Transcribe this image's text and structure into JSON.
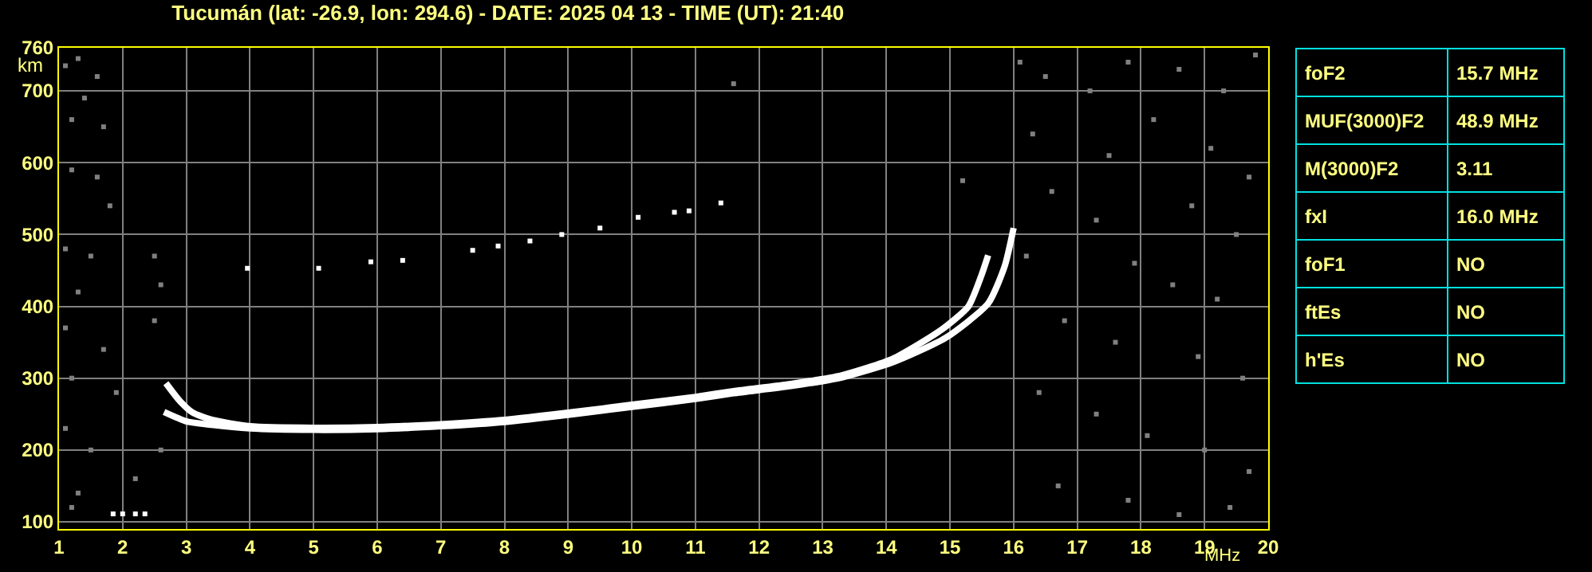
{
  "chart_data": [
    {
      "type": "line",
      "title": "Tucumán (lat: -26.9, lon: 294.6) - DATE: 2025 04 13 - TIME (UT): 21:40",
      "xlabel": "MHz",
      "ylabel": "km",
      "xlim": [
        1,
        20
      ],
      "xticks": [
        1,
        2,
        3,
        4,
        5,
        6,
        7,
        8,
        9,
        10,
        11,
        12,
        13,
        14,
        15,
        16,
        17,
        18,
        19,
        20
      ],
      "ylim": [
        90,
        760
      ],
      "yticks": [
        100,
        200,
        300,
        400,
        500,
        600,
        700,
        760
      ],
      "grid": true,
      "series": [
        {
          "marker": "none",
          "color": "#ffffff",
          "x": [
            2.68,
            2.9,
            3.1,
            3.4,
            4,
            5,
            6,
            7,
            8,
            9.1,
            10,
            11,
            11.6,
            12.5,
            13.3,
            14.1,
            14.86,
            15.29,
            15.49,
            15.6
          ],
          "values": [
            293,
            268,
            252,
            242,
            233,
            231,
            232,
            236,
            242,
            253,
            263,
            274,
            282,
            292,
            304,
            327,
            367,
            400,
            442,
            471
          ]
        },
        {
          "marker": "none",
          "color": "#ffffff",
          "x": [
            2.65,
            3,
            3.4,
            4,
            5,
            6,
            7,
            8,
            9.1,
            10,
            11,
            11.6,
            12.5,
            13.3,
            14.1,
            14.93,
            15.6,
            15.86,
            16.0
          ],
          "values": [
            253,
            240,
            235,
            230,
            228,
            229,
            233,
            239,
            250,
            260,
            271,
            279,
            289,
            301,
            322,
            356,
            404,
            456,
            509
          ]
        },
        {
          "type": "scatter",
          "marker": "square",
          "color": "#ffffff",
          "x": [
            1.85,
            2.0,
            2.2,
            2.35,
            3.96,
            5.08,
            5.9,
            6.4,
            7.5,
            7.9,
            8.4,
            8.9,
            9.5,
            10.1,
            10.67,
            10.9,
            11.4
          ],
          "values": [
            111,
            111,
            111,
            111,
            453,
            453,
            462,
            464,
            478,
            484,
            491,
            500,
            509,
            524,
            531,
            533,
            544
          ]
        },
        {
          "type": "scatter",
          "marker": "square",
          "color": "#808080",
          "x": [
            1.1,
            1.3,
            1.6,
            1.4,
            1.2,
            1.7,
            1.2,
            1.6,
            1.8,
            1.1,
            1.5,
            2.5,
            1.3,
            2.6,
            1.1,
            1.7,
            2.5,
            1.2,
            1.9,
            1.1,
            1.5,
            2.2,
            1.3,
            2.6,
            1.2,
            16.1,
            16.5,
            17.2,
            17.8,
            18.6,
            19.3,
            19.8,
            16.3,
            17.5,
            18.2,
            19.1,
            19.7,
            16.6,
            17.3,
            18.8,
            19.5,
            16.2,
            17.9,
            18.5,
            19.2,
            16.8,
            17.6,
            18.9,
            19.6,
            16.4,
            17.3,
            18.1,
            19.0,
            19.7,
            16.7,
            17.8,
            18.6,
            19.4,
            15.2,
            11.6
          ],
          "values": [
            735,
            745,
            720,
            690,
            660,
            650,
            590,
            580,
            540,
            480,
            470,
            470,
            420,
            430,
            370,
            340,
            380,
            300,
            280,
            230,
            200,
            160,
            140,
            200,
            120,
            740,
            720,
            700,
            740,
            730,
            700,
            750,
            640,
            610,
            660,
            620,
            580,
            560,
            520,
            540,
            500,
            470,
            460,
            430,
            410,
            380,
            350,
            330,
            300,
            280,
            250,
            220,
            200,
            170,
            150,
            130,
            110,
            120,
            575,
            710
          ]
        }
      ]
    },
    {
      "type": "other",
      "annotations": [
        "foF2",
        "15.7 MHz",
        "MUF(3000)F2",
        "48.9 MHz",
        "M(3000)F2",
        "3.11",
        "fxI",
        "16.0 MHz",
        "foF1",
        "NO",
        "ftEs",
        "NO",
        "h'Es",
        "NO"
      ]
    }
  ]
}
